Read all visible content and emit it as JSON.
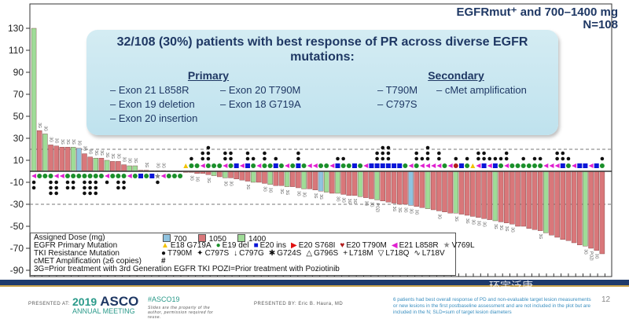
{
  "header": {
    "title": "EGFRmut⁺ and 700–1400 mg",
    "subtitle": "N=108"
  },
  "callout": {
    "headline": "32/108 (30%) patients with best response of PR across diverse EGFR mutations:",
    "primary_title": "Primary",
    "primary_col1": [
      "– Exon 21 L858R",
      "– Exon 19 deletion",
      "– Exon 20 insertion"
    ],
    "primary_col2": [
      "– Exon 20 T790M",
      "– Exon 18 G719A"
    ],
    "secondary_title": "Secondary",
    "secondary_col1": [
      "– T790M",
      "– C797S"
    ],
    "secondary_col2": [
      "– cMet amplification"
    ]
  },
  "legend": {
    "dose_label": "Assigned Dose (mg)",
    "doses": [
      {
        "label": "700",
        "color": "#8fc3e0"
      },
      {
        "label": "1050",
        "color": "#d9777a"
      },
      {
        "label": "1400",
        "color": "#9fdc97"
      }
    ],
    "primary_label": "EGFR Primary Mutation",
    "primary": [
      {
        "label": "E18 G719A",
        "symbol": "▲",
        "color": "#f2c200"
      },
      {
        "label": "E19 del",
        "symbol": "●",
        "color": "#1a8f2a"
      },
      {
        "label": "E20 ins",
        "symbol": "■",
        "color": "#0a16d8"
      },
      {
        "label": "E20 S768I",
        "symbol": "▶",
        "color": "#e01010"
      },
      {
        "label": "E20 T790M",
        "symbol": "♥",
        "color": "#b01c1c"
      },
      {
        "label": "E21 L858R",
        "symbol": "◀",
        "color": "#e020d0"
      },
      {
        "label": "V769L",
        "symbol": "★",
        "color": "#888888"
      }
    ],
    "resistance_label": "TKI Resistance Mutation",
    "resistance": [
      {
        "label": "T790M",
        "symbol": "●"
      },
      {
        "label": "C797S",
        "symbol": "✦"
      },
      {
        "label": "C797G",
        "symbol": "↓"
      },
      {
        "label": "G724S",
        "symbol": "✱"
      },
      {
        "label": "G796S",
        "symbol": "△"
      },
      {
        "label": "L718M",
        "symbol": "+"
      },
      {
        "label": "L718Q",
        "symbol": "▽"
      },
      {
        "label": "L718V",
        "symbol": "∿"
      }
    ],
    "cmet_label": "cMET Amplification (≥6 copies)",
    "cmet_symbol": "#",
    "note": "3G=Prior treatment with 3rd Generation EGFR TKI  POZI=Prior treatment with Pozi­otinib"
  },
  "footer": {
    "presented_at": "PRESENTED AT:",
    "logo_year": "2019",
    "logo_name": "ASCO",
    "logo_sub": "ANNUAL MEETING",
    "hashtag": "#ASCO19",
    "hashtag_note": "Slides are the property of the author, permission required for reuse.",
    "presented_by": "PRESENTED BY: Eric B. Haura, MD",
    "note": "6 patients had best overall response of PD and non-evaluable target lesion measurements or new lesions in the first postbaseline assessment and are not included in the plot but are included in the N; SLD=sum of target lesion diameters",
    "page": "12",
    "watermark": "环宇泛康"
  },
  "chart_data": {
    "type": "bar",
    "title": "",
    "xlabel": "",
    "ylabel": "",
    "ylim": [
      -95,
      140
    ],
    "yticks": [
      130,
      110,
      90,
      70,
      50,
      30,
      10,
      -10,
      -30,
      -50,
      -70,
      -90
    ],
    "reference_lines": [
      20,
      -30
    ],
    "values": [
      130,
      37,
      34,
      24,
      23,
      22,
      22,
      22,
      21,
      16,
      13,
      12,
      12,
      10,
      9,
      9,
      6,
      5,
      5,
      1,
      1,
      0.5,
      0.5,
      0.5,
      0.3,
      0.2,
      0.1,
      -1,
      -1,
      -2,
      -2,
      -3,
      -4,
      -5,
      -6,
      -6,
      -7,
      -8,
      -9,
      -10,
      -10,
      -11,
      -12,
      -13,
      -13,
      -14,
      -14,
      -15,
      -16,
      -16,
      -17,
      -18,
      -19,
      -20,
      -20,
      -21,
      -22,
      -22,
      -23,
      -24,
      -25,
      -26,
      -27,
      -28,
      -29,
      -30,
      -30,
      -31,
      -32,
      -33,
      -34,
      -35,
      -36,
      -37,
      -38,
      -38,
      -39,
      -40,
      -41,
      -42,
      -43,
      -44,
      -45,
      -46,
      -47,
      -48,
      -50,
      -50,
      -52,
      -53,
      -54,
      -56,
      -58,
      -60,
      -62,
      -63,
      -65,
      -67,
      -68,
      -70,
      -72,
      -75
    ],
    "dose": "GRGRRRRGBRRGRGRRRGGRRRRRRGRRRRRRGRGRRRRGRRGRRGRRGRRBGRGRRRGRRGRRRRRBRRGRRRRGRRRRRRGRRRRRRRRGRRRRRRGRRR",
    "primary": "LDDDLLDDDDDDDLDDDLDIDIVLDDDGDDLDDDLDILIDLDDIDLDIDLLDDLIDDIDLIIIIIIDLDLLLLDLTIDGLILIDLDDDDDDLLLIDLIILIDG",
    "resistance_count": [
      2,
      0,
      0,
      3,
      3,
      0,
      2,
      2,
      0,
      3,
      3,
      3,
      0,
      1,
      0,
      2,
      2,
      0,
      0,
      0,
      0,
      0,
      1,
      0,
      0,
      0,
      0,
      0,
      1,
      0,
      2,
      3,
      0,
      0,
      2,
      2,
      0,
      0,
      2,
      1,
      0,
      2,
      0,
      1,
      0,
      0,
      0,
      2,
      0,
      0,
      0,
      0,
      0,
      0,
      1,
      1,
      0,
      0,
      0,
      0,
      0,
      2,
      3,
      3,
      0,
      0,
      0,
      0,
      2,
      1,
      3,
      0,
      2,
      0,
      0,
      1,
      0,
      1,
      0,
      2,
      2,
      1,
      1,
      1,
      2,
      0,
      0,
      1,
      0,
      1,
      1,
      0,
      0,
      2,
      2,
      1,
      0,
      0,
      0,
      0,
      0,
      1
    ],
    "prior": [
      "",
      "3G",
      "3G",
      "3G",
      "3G",
      "3G",
      "3G",
      "3G",
      "3G",
      "3G",
      "3G",
      "3G",
      "3G",
      "3G",
      "3G",
      "3G",
      "3G",
      "3G",
      "3G",
      "",
      "3G",
      "",
      "3G",
      "3G",
      "",
      "",
      "",
      "",
      "3G",
      "3G",
      "",
      "3G",
      "",
      "",
      "3G",
      "3G",
      "",
      "",
      "3G",
      "",
      "",
      "3G",
      "3G",
      "",
      "3G",
      "3G",
      "",
      "3G",
      "3G",
      "",
      "3G",
      "3G",
      "",
      "",
      "3G",
      "3G",
      "3G",
      "3G",
      "",
      "3G",
      "3G",
      "POZI",
      "",
      "",
      "3G",
      "3G",
      "3G",
      "3G",
      "3G",
      "",
      "",
      "",
      "3G",
      "",
      "",
      "3G",
      "",
      "3G",
      "3G",
      "3G",
      "3G",
      "",
      "3G",
      "3G",
      "3G",
      "3G",
      "",
      "",
      "",
      "",
      "3G",
      "",
      "",
      "",
      "",
      "",
      "",
      "",
      "3G",
      "POZI",
      "3G",
      ""
    ]
  }
}
